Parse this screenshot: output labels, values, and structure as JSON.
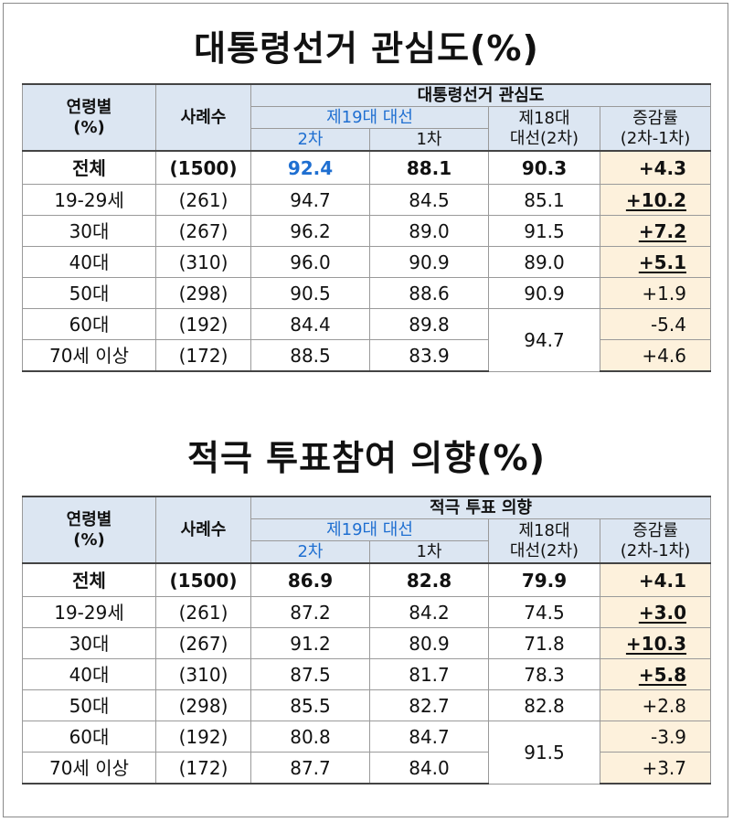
{
  "table1": {
    "title": "대통령선거 관심도(%)",
    "header": {
      "age": "연령별\n(%)",
      "sample": "사례수",
      "group": "대통령선거 관심도",
      "election19": "제19대 대선",
      "round2": "2차",
      "round1": "1차",
      "election18": "제18대\n대선(2차)",
      "change": "증감률\n(2차-1차)"
    },
    "total": {
      "label": "전체",
      "n": "(1500)",
      "r2": "92.4",
      "r1": "88.1",
      "e18": "90.3",
      "chg": "+4.3"
    },
    "rows": [
      {
        "label": "19-29세",
        "n": "(261)",
        "r2": "94.7",
        "r1": "84.5",
        "e18": "85.1",
        "chg": "+10.2"
      },
      {
        "label": "30대",
        "n": "(267)",
        "r2": "96.2",
        "r1": "89.0",
        "e18": "91.5",
        "chg": "+7.2"
      },
      {
        "label": "40대",
        "n": "(310)",
        "r2": "96.0",
        "r1": "90.9",
        "e18": "89.0",
        "chg": "+5.1"
      },
      {
        "label": "50대",
        "n": "(298)",
        "r2": "90.5",
        "r1": "88.6",
        "e18": "90.9",
        "chg": "+1.9"
      },
      {
        "label": "60대",
        "n": "(192)",
        "r2": "84.4",
        "r1": "89.8",
        "e18": "94.7",
        "chg": "-5.4"
      },
      {
        "label": "70세 이상",
        "n": "(172)",
        "r2": "88.5",
        "r1": "83.9",
        "chg": "+4.6"
      }
    ]
  },
  "table2": {
    "title": "적극 투표참여 의향(%)",
    "header": {
      "age": "연령별\n(%)",
      "sample": "사례수",
      "group": "적극 투표 의향",
      "election19": "제19대 대선",
      "round2": "2차",
      "round1": "1차",
      "election18": "제18대\n대선(2차)",
      "change": "증감률\n(2차-1차)"
    },
    "total": {
      "label": "전체",
      "n": "(1500)",
      "r2": "86.9",
      "r1": "82.8",
      "e18": "79.9",
      "chg": "+4.1"
    },
    "rows": [
      {
        "label": "19-29세",
        "n": "(261)",
        "r2": "87.2",
        "r1": "84.2",
        "e18": "74.5",
        "chg": "+3.0"
      },
      {
        "label": "30대",
        "n": "(267)",
        "r2": "91.2",
        "r1": "80.9",
        "e18": "71.8",
        "chg": "+10.3"
      },
      {
        "label": "40대",
        "n": "(310)",
        "r2": "87.5",
        "r1": "81.7",
        "e18": "78.3",
        "chg": "+5.8"
      },
      {
        "label": "50대",
        "n": "(298)",
        "r2": "85.5",
        "r1": "82.7",
        "e18": "82.8",
        "chg": "+2.8"
      },
      {
        "label": "60대",
        "n": "(192)",
        "r2": "80.8",
        "r1": "84.7",
        "e18": "91.5",
        "chg": "-3.9"
      },
      {
        "label": "70세 이상",
        "n": "(172)",
        "r2": "87.7",
        "r1": "84.0",
        "chg": "+3.7"
      }
    ]
  }
}
